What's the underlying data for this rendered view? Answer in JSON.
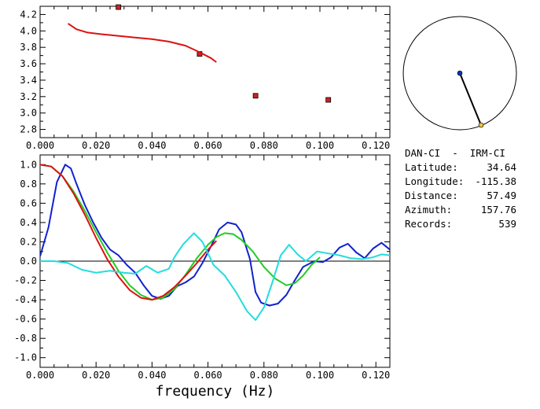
{
  "station_info": {
    "title": "DAN-CI  -  IRM-CI",
    "rows": [
      {
        "label": "Latitude:",
        "value": "34.64"
      },
      {
        "label": "Longitude:",
        "value": "-115.38"
      },
      {
        "label": "Distance:",
        "value": "57.49"
      },
      {
        "label": "Azimuth:",
        "value": "157.76"
      },
      {
        "label": "Records:",
        "value": "539"
      }
    ]
  },
  "colors": {
    "red": "#dd1111",
    "blue": "#1122cc",
    "green": "#22cc22",
    "cyan": "#22dddd",
    "marker_fill": "#cc2222",
    "station_dot": "#1133aa",
    "source_dot": "#e8c040"
  },
  "chart_data": [
    {
      "type": "scatter",
      "title": "",
      "xlabel": "",
      "ylabel": "",
      "xlim": [
        0.0,
        0.125
      ],
      "ylim": [
        2.7,
        4.3
      ],
      "x_ticks": [
        "0.000",
        "0.020",
        "0.040",
        "0.060",
        "0.080",
        "0.100",
        "0.120"
      ],
      "y_ticks": [
        "4.2",
        "4.0",
        "3.8",
        "3.6",
        "3.4",
        "3.2",
        "3.0",
        "2.8"
      ],
      "grid": false,
      "series": [
        {
          "type": "scatter",
          "color": "red",
          "points": [
            [
              0.028,
              4.29
            ],
            [
              0.057,
              3.72
            ],
            [
              0.077,
              3.21
            ],
            [
              0.103,
              3.16
            ]
          ]
        },
        {
          "type": "line",
          "color": "red",
          "points": [
            [
              0.01,
              4.09
            ],
            [
              0.013,
              4.02
            ],
            [
              0.017,
              3.98
            ],
            [
              0.022,
              3.96
            ],
            [
              0.028,
              3.94
            ],
            [
              0.034,
              3.92
            ],
            [
              0.04,
              3.9
            ],
            [
              0.046,
              3.87
            ],
            [
              0.052,
              3.82
            ],
            [
              0.057,
              3.74
            ],
            [
              0.061,
              3.67
            ],
            [
              0.063,
              3.62
            ]
          ]
        }
      ]
    },
    {
      "type": "line",
      "title": "",
      "xlabel": "frequency (Hz)",
      "ylabel": "",
      "xlim": [
        0.0,
        0.125
      ],
      "ylim": [
        -1.1,
        1.1
      ],
      "x_ticks": [
        "0.000",
        "0.020",
        "0.040",
        "0.060",
        "0.080",
        "0.100",
        "0.120"
      ],
      "y_ticks": [
        "1.0",
        "0.8",
        "0.6",
        "0.4",
        "0.2",
        "0.0",
        "-0.2",
        "-0.4",
        "-0.6",
        "-0.8",
        "-1.0"
      ],
      "grid": false,
      "zero_line": true,
      "series": [
        {
          "color": "blue",
          "points": [
            [
              0.0,
              0.05
            ],
            [
              0.003,
              0.35
            ],
            [
              0.006,
              0.82
            ],
            [
              0.009,
              1.0
            ],
            [
              0.011,
              0.96
            ],
            [
              0.013,
              0.8
            ],
            [
              0.016,
              0.58
            ],
            [
              0.019,
              0.4
            ],
            [
              0.022,
              0.24
            ],
            [
              0.025,
              0.12
            ],
            [
              0.028,
              0.06
            ],
            [
              0.031,
              -0.04
            ],
            [
              0.034,
              -0.12
            ],
            [
              0.037,
              -0.25
            ],
            [
              0.04,
              -0.36
            ],
            [
              0.043,
              -0.39
            ],
            [
              0.046,
              -0.36
            ],
            [
              0.049,
              -0.26
            ],
            [
              0.052,
              -0.22
            ],
            [
              0.055,
              -0.16
            ],
            [
              0.058,
              -0.02
            ],
            [
              0.061,
              0.15
            ],
            [
              0.064,
              0.33
            ],
            [
              0.067,
              0.4
            ],
            [
              0.07,
              0.38
            ],
            [
              0.072,
              0.3
            ],
            [
              0.075,
              0.02
            ],
            [
              0.077,
              -0.32
            ],
            [
              0.079,
              -0.43
            ],
            [
              0.082,
              -0.46
            ],
            [
              0.085,
              -0.44
            ],
            [
              0.088,
              -0.35
            ],
            [
              0.091,
              -0.2
            ],
            [
              0.094,
              -0.06
            ],
            [
              0.098,
              0.0
            ],
            [
              0.101,
              -0.01
            ],
            [
              0.104,
              0.04
            ],
            [
              0.107,
              0.14
            ],
            [
              0.11,
              0.18
            ],
            [
              0.113,
              0.09
            ],
            [
              0.116,
              0.03
            ],
            [
              0.119,
              0.13
            ],
            [
              0.122,
              0.19
            ],
            [
              0.125,
              0.12
            ]
          ]
        },
        {
          "color": "green",
          "points": [
            [
              0.0,
              1.0
            ],
            [
              0.004,
              0.98
            ],
            [
              0.008,
              0.88
            ],
            [
              0.012,
              0.72
            ],
            [
              0.016,
              0.52
            ],
            [
              0.02,
              0.3
            ],
            [
              0.024,
              0.09
            ],
            [
              0.028,
              -0.1
            ],
            [
              0.032,
              -0.25
            ],
            [
              0.036,
              -0.35
            ],
            [
              0.04,
              -0.4
            ],
            [
              0.044,
              -0.38
            ],
            [
              0.048,
              -0.29
            ],
            [
              0.052,
              -0.14
            ],
            [
              0.056,
              0.03
            ],
            [
              0.06,
              0.17
            ],
            [
              0.063,
              0.25
            ],
            [
              0.066,
              0.29
            ],
            [
              0.069,
              0.28
            ],
            [
              0.072,
              0.22
            ],
            [
              0.076,
              0.1
            ],
            [
              0.08,
              -0.06
            ],
            [
              0.084,
              -0.18
            ],
            [
              0.088,
              -0.25
            ],
            [
              0.091,
              -0.23
            ],
            [
              0.094,
              -0.15
            ],
            [
              0.097,
              -0.04
            ],
            [
              0.1,
              0.04
            ]
          ]
        },
        {
          "color": "red",
          "points": [
            [
              0.0,
              1.0
            ],
            [
              0.004,
              0.98
            ],
            [
              0.008,
              0.88
            ],
            [
              0.012,
              0.7
            ],
            [
              0.016,
              0.48
            ],
            [
              0.02,
              0.24
            ],
            [
              0.024,
              0.02
            ],
            [
              0.028,
              -0.16
            ],
            [
              0.032,
              -0.3
            ],
            [
              0.036,
              -0.38
            ],
            [
              0.04,
              -0.4
            ],
            [
              0.044,
              -0.36
            ],
            [
              0.048,
              -0.27
            ],
            [
              0.052,
              -0.15
            ],
            [
              0.056,
              -0.02
            ],
            [
              0.06,
              0.12
            ],
            [
              0.063,
              0.21
            ]
          ]
        },
        {
          "color": "cyan",
          "points": [
            [
              0.0,
              0.0
            ],
            [
              0.005,
              0.0
            ],
            [
              0.01,
              -0.02
            ],
            [
              0.015,
              -0.09
            ],
            [
              0.02,
              -0.12
            ],
            [
              0.025,
              -0.1
            ],
            [
              0.03,
              -0.12
            ],
            [
              0.034,
              -0.13
            ],
            [
              0.038,
              -0.05
            ],
            [
              0.042,
              -0.12
            ],
            [
              0.046,
              -0.08
            ],
            [
              0.048,
              0.04
            ],
            [
              0.051,
              0.17
            ],
            [
              0.055,
              0.29
            ],
            [
              0.058,
              0.2
            ],
            [
              0.062,
              -0.04
            ],
            [
              0.066,
              -0.15
            ],
            [
              0.07,
              -0.32
            ],
            [
              0.074,
              -0.52
            ],
            [
              0.077,
              -0.61
            ],
            [
              0.08,
              -0.48
            ],
            [
              0.083,
              -0.22
            ],
            [
              0.086,
              0.06
            ],
            [
              0.089,
              0.17
            ],
            [
              0.092,
              0.07
            ],
            [
              0.095,
              0.0
            ],
            [
              0.099,
              0.1
            ],
            [
              0.103,
              0.08
            ],
            [
              0.107,
              0.06
            ],
            [
              0.111,
              0.03
            ],
            [
              0.115,
              0.02
            ],
            [
              0.119,
              0.04
            ],
            [
              0.122,
              0.07
            ],
            [
              0.125,
              0.06
            ]
          ]
        }
      ]
    }
  ]
}
